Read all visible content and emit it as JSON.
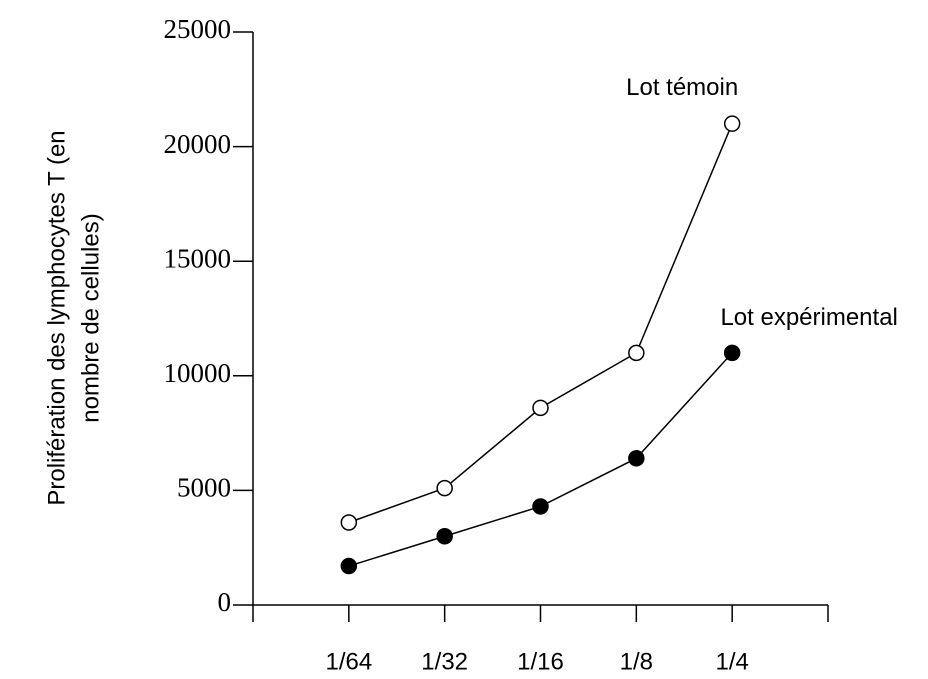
{
  "chart_data": {
    "type": "line",
    "ylabel": [
      "Prolifération des lymphocytes T (en",
      "nombre de cellules)"
    ],
    "categories": [
      "1/64",
      "1/32",
      "1/16",
      "1/8",
      "1/4"
    ],
    "series": [
      {
        "name": "Lot témoin",
        "color": "#000000",
        "marker": "open",
        "values": [
          3600,
          5100,
          8600,
          11000,
          21000
        ]
      },
      {
        "name": "Lot expérimental",
        "color": "#000000",
        "marker": "filled",
        "values": [
          1700,
          3000,
          4300,
          6400,
          11000
        ]
      }
    ],
    "ylim": [
      0,
      25000
    ],
    "yticks": [
      0,
      5000,
      10000,
      15000,
      20000,
      25000
    ]
  }
}
